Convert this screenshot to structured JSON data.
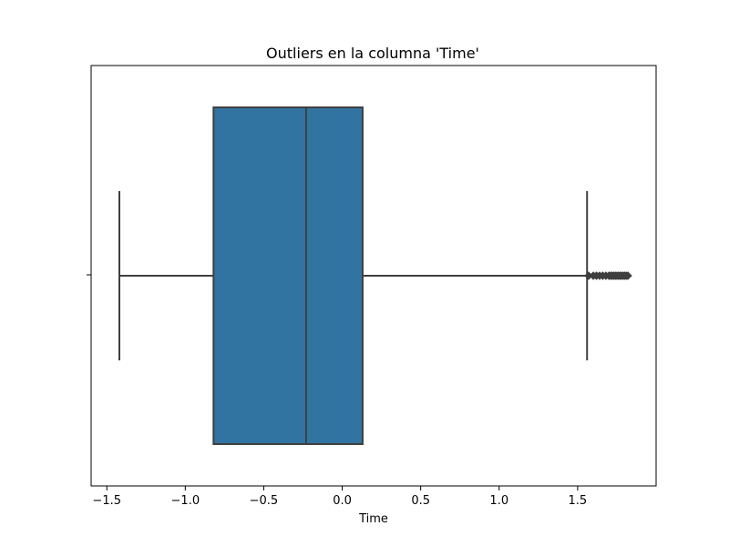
{
  "chart_data": {
    "type": "box",
    "orientation": "horizontal",
    "title": "Outliers en la columna 'Time'",
    "xlabel": "Time",
    "ylabel": "",
    "xlim": [
      -1.6,
      2.0
    ],
    "xticks": [
      -1.5,
      -1.0,
      -0.5,
      0.0,
      0.5,
      1.0,
      1.5
    ],
    "xtick_labels": [
      "−1.5",
      "−1.0",
      "−0.5",
      "0.0",
      "0.5",
      "1.0",
      "1.5"
    ],
    "box": {
      "whisker_low": -1.42,
      "q1": -0.82,
      "median": -0.23,
      "q3": 0.13,
      "whisker_high": 1.56
    },
    "outliers": [
      1.57,
      1.6,
      1.62,
      1.64,
      1.66,
      1.68,
      1.7,
      1.71,
      1.72,
      1.73,
      1.74,
      1.75,
      1.76,
      1.77,
      1.78,
      1.79,
      1.8,
      1.81,
      1.82
    ],
    "colors": {
      "box_fill": "#3274a1",
      "line": "#3f3f3f",
      "axes": "#000000"
    },
    "grid": false
  }
}
